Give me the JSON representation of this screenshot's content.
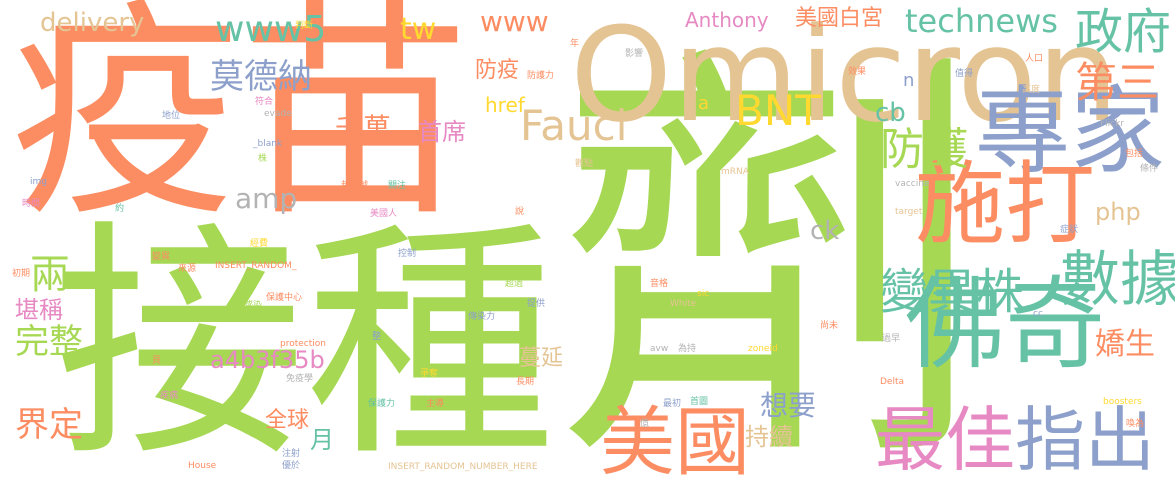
{
  "words": [
    {
      "text": "疫苗",
      "color": "#fc8d62"
    },
    {
      "text": "接種",
      "color": "#a6d854"
    },
    {
      "text": "劑",
      "color": "#a6d854"
    },
    {
      "text": "Omicron",
      "color": "#e5c494"
    },
    {
      "text": "專家",
      "color": "#8da0cb"
    },
    {
      "text": "施打",
      "color": "#fc8d62"
    },
    {
      "text": "佛奇",
      "color": "#66c2a5"
    },
    {
      "text": "數據",
      "color": "#66c2a5"
    },
    {
      "text": "最佳",
      "color": "#e78ac3"
    },
    {
      "text": "指出",
      "color": "#8da0cb"
    },
    {
      "text": "美國",
      "color": "#fc8d62"
    },
    {
      "text": "政府",
      "color": "#66c2a5"
    },
    {
      "text": "第三",
      "color": "#fc8d62"
    },
    {
      "text": "變異株",
      "color": "#66c2a5"
    },
    {
      "text": "防護",
      "color": "#a6d854"
    },
    {
      "text": "Fauci",
      "color": "#e5c494"
    },
    {
      "text": "BNT",
      "color": "#ffd92f"
    },
    {
      "text": "莫德納",
      "color": "#8da0cb"
    },
    {
      "text": "www5",
      "color": "#66c2a5"
    },
    {
      "text": "delivery",
      "color": "#e5c494"
    },
    {
      "text": "www",
      "color": "#fc8d62"
    },
    {
      "text": "tw",
      "color": "#ffd92f"
    },
    {
      "text": "technews",
      "color": "#66c2a5"
    },
    {
      "text": "Anthony",
      "color": "#e78ac3"
    },
    {
      "text": "美國白宮",
      "color": "#fc8d62"
    },
    {
      "text": "兩",
      "color": "#a6d854"
    },
    {
      "text": "堪稱",
      "color": "#e78ac3"
    },
    {
      "text": "完整",
      "color": "#a6d854"
    },
    {
      "text": "界定",
      "color": "#fc8d62"
    },
    {
      "text": "千萬",
      "color": "#fc8d62"
    },
    {
      "text": "首席",
      "color": "#e78ac3"
    },
    {
      "text": "防疫",
      "color": "#fc8d62"
    },
    {
      "text": "href",
      "color": "#ffd92f"
    },
    {
      "text": "cb",
      "color": "#66c2a5"
    },
    {
      "text": "amp",
      "color": "#b3b3b3"
    },
    {
      "text": "php",
      "color": "#e5c494"
    },
    {
      "text": "ck",
      "color": "#b3b3b3"
    },
    {
      "text": "嬌生",
      "color": "#fc8d62"
    },
    {
      "text": "a4b3f35b",
      "color": "#e78ac3"
    },
    {
      "text": "蔓延",
      "color": "#e5c494"
    },
    {
      "text": "想要",
      "color": "#8da0cb"
    },
    {
      "text": "全球",
      "color": "#fc8d62"
    },
    {
      "text": "月",
      "color": "#66c2a5"
    },
    {
      "text": "持續",
      "color": "#e5c494"
    },
    {
      "text": "a",
      "color": "#ffd92f"
    },
    {
      "text": "n",
      "color": "#8da0cb"
    },
    {
      "text": "判斷",
      "color": "#ffd92f"
    },
    {
      "text": "年",
      "color": "#fc8d62"
    },
    {
      "text": "影響",
      "color": "#b3b3b3"
    },
    {
      "text": "防護力",
      "color": "#fc8d62"
    },
    {
      "text": "效果",
      "color": "#fc8d62"
    },
    {
      "text": "值得",
      "color": "#8da0cb"
    },
    {
      "text": "人口",
      "color": "#fc8d62"
    },
    {
      "text": "高度",
      "color": "#e5c494"
    },
    {
      "text": "符合",
      "color": "#e78ac3"
    },
    {
      "text": "地位",
      "color": "#8da0cb"
    },
    {
      "text": "evade",
      "color": "#b3b3b3"
    },
    {
      "text": "_blank",
      "color": "#8da0cb"
    },
    {
      "text": "株",
      "color": "#a6d854"
    },
    {
      "text": "img",
      "color": "#8da0cb"
    },
    {
      "text": "時間",
      "color": "#e78ac3"
    },
    {
      "text": "約",
      "color": "#66c2a5"
    },
    {
      "text": "越來越",
      "color": "#fc8d62"
    },
    {
      "text": "關注",
      "color": "#66c2a5"
    },
    {
      "text": "美國人",
      "color": "#e78ac3"
    },
    {
      "text": "觀點",
      "color": "#e5c494"
    },
    {
      "text": "mRNA",
      "color": "#e5c494"
    },
    {
      "text": "Flickr",
      "color": "#b3b3b3"
    },
    {
      "text": "包括",
      "color": "#fc8d62"
    },
    {
      "text": "條件",
      "color": "#b3b3b3"
    },
    {
      "text": "vaccine",
      "color": "#b3b3b3"
    },
    {
      "text": "target",
      "color": "#e5c494"
    },
    {
      "text": "說",
      "color": "#fc8d62"
    },
    {
      "text": "經費",
      "color": "#ffd92f"
    },
    {
      "text": "症狀",
      "color": "#8da0cb"
    },
    {
      "text": "控制",
      "color": "#8da0cb"
    },
    {
      "text": "初期",
      "color": "#fc8d62"
    },
    {
      "text": "變異",
      "color": "#fc8d62"
    },
    {
      "text": "來源",
      "color": "#fc8d62"
    },
    {
      "text": "INSERT_RANDOM_",
      "color": "#fc8d62"
    },
    {
      "text": "超過",
      "color": "#a6d854"
    },
    {
      "text": "音格",
      "color": "#fc8d62"
    },
    {
      "text": "sic",
      "color": "#ffd92f"
    },
    {
      "text": "感染",
      "color": "#a6d854"
    },
    {
      "text": "保護中心",
      "color": "#fc8d62"
    },
    {
      "text": "提供",
      "color": "#8da0cb"
    },
    {
      "text": "White",
      "color": "#e5c494"
    },
    {
      "text": "傳染力",
      "color": "#8da0cb"
    },
    {
      "text": "protection",
      "color": "#fc8d62"
    },
    {
      "text": "zoneid",
      "color": "#ffd92f"
    },
    {
      "text": "尚未",
      "color": "#fc8d62"
    },
    {
      "text": "cc",
      "color": "#8da0cb"
    },
    {
      "text": "過早",
      "color": "#b3b3b3"
    },
    {
      "text": "整",
      "color": "#8da0cb"
    },
    {
      "text": "avw",
      "color": "#b3b3b3"
    },
    {
      "text": "為持",
      "color": "#b3b3b3"
    },
    {
      "text": "Delta",
      "color": "#fc8d62"
    },
    {
      "text": "疾病",
      "color": "#e78ac3"
    },
    {
      "text": "免疫學",
      "color": "#b3b3b3"
    },
    {
      "text": "爭奪",
      "color": "#ffd92f"
    },
    {
      "text": "長期",
      "color": "#fc8d62"
    },
    {
      "text": "保護力",
      "color": "#66c2a5"
    },
    {
      "text": "主導",
      "color": "#fc8d62"
    },
    {
      "text": "最初",
      "color": "#8da0cb"
    },
    {
      "text": "首圖",
      "color": "#66c2a5"
    },
    {
      "text": "boosters",
      "color": "#ffd92f"
    },
    {
      "text": "喚為",
      "color": "#fc8d62"
    },
    {
      "text": "House",
      "color": "#fc8d62"
    },
    {
      "text": "注射",
      "color": "#8da0cb"
    },
    {
      "text": "優於",
      "color": "#8da0cb"
    },
    {
      "text": "INSERT_RANDOM_NUMBER_HERE",
      "color": "#e5c494"
    },
    {
      "text": "貝",
      "color": "#fc8d62"
    },
    {
      "text": "億",
      "color": "#b3b3b3"
    }
  ]
}
